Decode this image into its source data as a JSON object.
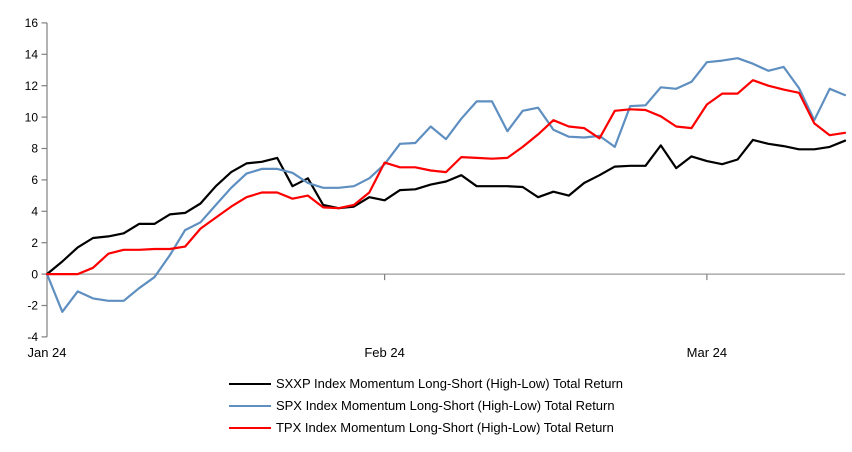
{
  "chart_data": {
    "type": "line",
    "title": "",
    "xlabel": "",
    "ylabel": "",
    "grid": "zero-line-only",
    "legend_position": "bottom-center",
    "x_axis": {
      "ticks": [
        {
          "label": "Jan 24",
          "index": 0
        },
        {
          "label": "Feb 24",
          "index": 22
        },
        {
          "label": "Mar 24",
          "index": 43
        }
      ]
    },
    "y_axis": {
      "min": -4,
      "max": 16,
      "step": 2,
      "ticks": [
        {
          "value": -4,
          "label": "-4"
        },
        {
          "value": -2,
          "label": "-2"
        },
        {
          "value": 0,
          "label": "0"
        },
        {
          "value": 2,
          "label": "2"
        },
        {
          "value": 4,
          "label": "4"
        },
        {
          "value": 6,
          "label": "6"
        },
        {
          "value": 8,
          "label": "8"
        },
        {
          "value": 10,
          "label": "10"
        },
        {
          "value": 12,
          "label": "12"
        },
        {
          "value": 14,
          "label": "14"
        },
        {
          "value": 16,
          "label": "16"
        }
      ]
    },
    "series": [
      {
        "name": "SXXP Index Momentum Long-Short (High-Low) Total Return",
        "color": "#000000",
        "values": [
          0.0,
          0.8,
          1.7,
          2.3,
          2.4,
          2.6,
          3.2,
          3.2,
          3.8,
          3.9,
          4.5,
          5.6,
          6.5,
          7.05,
          7.15,
          7.4,
          5.6,
          6.1,
          4.4,
          4.2,
          4.3,
          4.9,
          4.7,
          5.35,
          5.4,
          5.7,
          5.9,
          6.3,
          5.6,
          5.6,
          5.6,
          5.55,
          4.9,
          5.25,
          5.0,
          5.8,
          6.3,
          6.85,
          6.9,
          6.9,
          8.2,
          6.75,
          7.5,
          7.2,
          7.0,
          7.3,
          8.55,
          8.3,
          8.15,
          7.95,
          7.95,
          8.1,
          8.5
        ]
      },
      {
        "name": "SPX Index Momentum Long-Short (High-Low) Total Return",
        "color": "#5E8FC0",
        "values": [
          0.0,
          -2.4,
          -1.1,
          -1.55,
          -1.7,
          -1.7,
          -0.9,
          -0.2,
          1.2,
          2.8,
          3.3,
          4.4,
          5.5,
          6.4,
          6.7,
          6.7,
          6.45,
          5.8,
          5.5,
          5.5,
          5.6,
          6.1,
          7.0,
          8.3,
          8.35,
          9.4,
          8.6,
          9.9,
          11.0,
          11.0,
          9.1,
          10.4,
          10.6,
          9.2,
          8.75,
          8.7,
          8.8,
          8.1,
          10.7,
          10.75,
          11.9,
          11.8,
          12.25,
          13.5,
          13.6,
          13.75,
          13.4,
          12.95,
          13.2,
          11.85,
          9.8,
          11.8,
          11.4
        ]
      },
      {
        "name": "TPX Index Momentum Long-Short (High-Low) Total Return",
        "color": "#FE0000",
        "values": [
          0.0,
          0.0,
          0.0,
          0.4,
          1.3,
          1.55,
          1.55,
          1.6,
          1.6,
          1.75,
          2.9,
          3.6,
          4.3,
          4.9,
          5.2,
          5.2,
          4.8,
          5.0,
          4.25,
          4.2,
          4.4,
          5.2,
          7.1,
          6.8,
          6.8,
          6.6,
          6.5,
          7.45,
          7.4,
          7.35,
          7.4,
          8.1,
          8.9,
          9.8,
          9.4,
          9.3,
          8.65,
          10.4,
          10.5,
          10.45,
          10.05,
          9.4,
          9.3,
          10.8,
          11.5,
          11.5,
          12.35,
          12.0,
          11.75,
          11.55,
          9.6,
          8.85,
          9.0
        ]
      }
    ]
  },
  "colors": {
    "background": "#FFFFFF",
    "axis": "#808080",
    "zero_line": "#9C9C9C",
    "text": "#000000"
  }
}
